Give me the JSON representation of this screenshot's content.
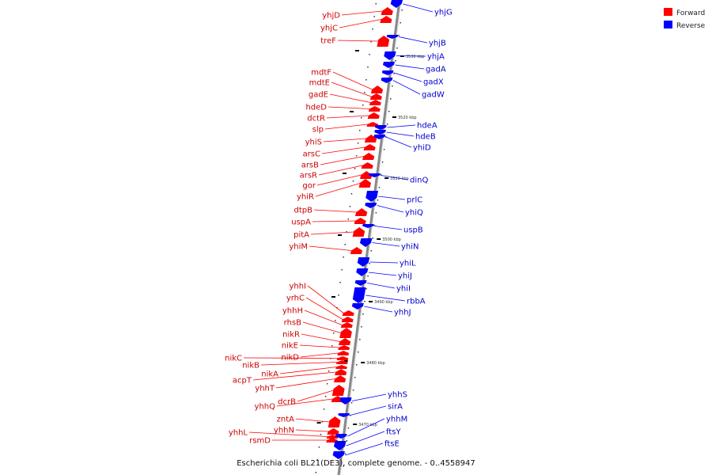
{
  "colors": {
    "forward": "#ff0000",
    "reverse": "#0000ff",
    "label_forward": "#cc0000",
    "label_reverse": "#0000cc",
    "backbone": "#888888",
    "tick": "#000000"
  },
  "legend": {
    "items": [
      {
        "label": "Forward",
        "strand": "forward"
      },
      {
        "label": "Reverse",
        "strand": "reverse"
      }
    ]
  },
  "caption": "Escherichia coli BL21(DE3), complete genome. - 0..4558947",
  "ticks": [
    "3530 kbp",
    "3520 kbp",
    "3510 kbp",
    "3500 kbp",
    "3490 kbp",
    "3480 kbp",
    "3470 kbp"
  ],
  "genes": {
    "forward": [
      "yhjD",
      "yhjC",
      "treF",
      "mdtF",
      "mdtE",
      "gadE",
      "hdeD",
      "dctR",
      "slp",
      "yhiS",
      "arsC",
      "arsB",
      "arsR",
      "gor",
      "yhiR",
      "dtpB",
      "uspA",
      "pitA",
      "yhiM",
      "yhhI",
      "yrhC",
      "yhhH",
      "rhsB",
      "nikR",
      "nikE",
      "nikD",
      "nikC",
      "nikB",
      "nikA",
      "acpT",
      "yhhT",
      "dcrB",
      "yhhQ",
      "zntA",
      "yhhN",
      "yhhL",
      "rsmD"
    ],
    "reverse": [
      "yhjG",
      "yhjB",
      "yhjA",
      "gadA",
      "gadX",
      "gadW",
      "hdeA",
      "hdeB",
      "yhiD",
      "dinQ",
      "prlC",
      "yhiQ",
      "uspB",
      "yhiN",
      "yhiL",
      "yhiJ",
      "yhiI",
      "rbbA",
      "yhhJ",
      "yhhS",
      "sirA",
      "yhhM",
      "ftsY",
      "ftsE"
    ]
  }
}
